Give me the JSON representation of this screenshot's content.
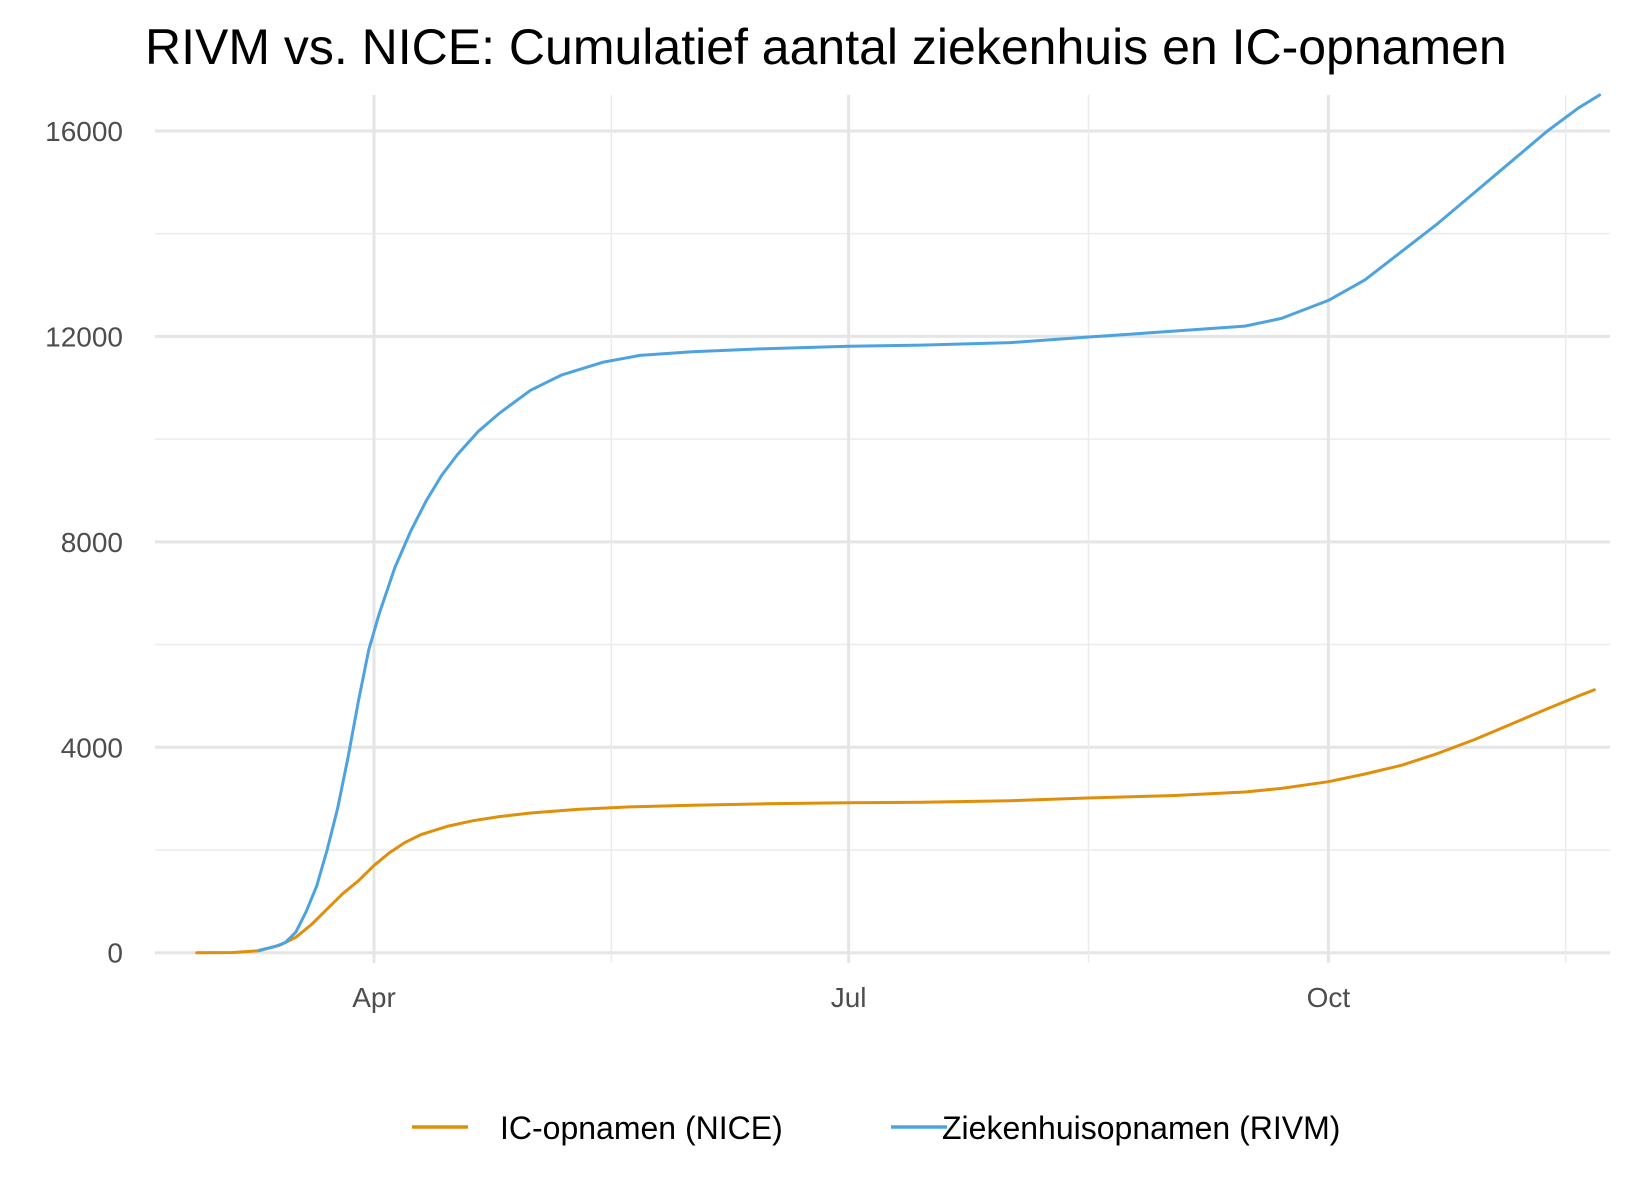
{
  "chart_data": {
    "type": "line",
    "title": "RIVM vs. NICE: Cumulatief aantal ziekenhuis en IC-opnamen",
    "xlabel": "",
    "ylabel": "",
    "x_type": "date",
    "xlim": [
      "2020-02-19",
      "2020-11-24"
    ],
    "ylim": [
      -200,
      16700
    ],
    "x_ticks": [
      {
        "value": "2020-04-01",
        "label": "Apr"
      },
      {
        "value": "2020-07-01",
        "label": "Jul"
      },
      {
        "value": "2020-10-01",
        "label": "Oct"
      }
    ],
    "y_ticks": [
      0,
      4000,
      8000,
      12000,
      16000
    ],
    "grid": true,
    "legend_position": "bottom",
    "series": [
      {
        "name": "IC-opnamen (NICE)",
        "color": "#E08F0B",
        "points": [
          [
            "2020-02-27",
            0
          ],
          [
            "2020-03-05",
            5
          ],
          [
            "2020-03-10",
            40
          ],
          [
            "2020-03-14",
            150
          ],
          [
            "2020-03-17",
            300
          ],
          [
            "2020-03-20",
            550
          ],
          [
            "2020-03-23",
            850
          ],
          [
            "2020-03-26",
            1150
          ],
          [
            "2020-03-29",
            1400
          ],
          [
            "2020-04-01",
            1700
          ],
          [
            "2020-04-04",
            1950
          ],
          [
            "2020-04-07",
            2150
          ],
          [
            "2020-04-10",
            2300
          ],
          [
            "2020-04-15",
            2460
          ],
          [
            "2020-04-20",
            2570
          ],
          [
            "2020-04-25",
            2650
          ],
          [
            "2020-05-01",
            2720
          ],
          [
            "2020-05-10",
            2790
          ],
          [
            "2020-05-20",
            2840
          ],
          [
            "2020-06-01",
            2870
          ],
          [
            "2020-06-15",
            2900
          ],
          [
            "2020-07-01",
            2920
          ],
          [
            "2020-07-15",
            2930
          ],
          [
            "2020-08-01",
            2960
          ],
          [
            "2020-08-15",
            3010
          ],
          [
            "2020-09-01",
            3060
          ],
          [
            "2020-09-15",
            3130
          ],
          [
            "2020-09-22",
            3200
          ],
          [
            "2020-10-01",
            3330
          ],
          [
            "2020-10-08",
            3480
          ],
          [
            "2020-10-15",
            3650
          ],
          [
            "2020-10-22",
            3880
          ],
          [
            "2020-10-29",
            4150
          ],
          [
            "2020-11-05",
            4450
          ],
          [
            "2020-11-12",
            4750
          ],
          [
            "2020-11-18",
            5000
          ],
          [
            "2020-11-21",
            5120
          ]
        ]
      },
      {
        "name": "Ziekenhuisopnamen (RIVM)",
        "color": "#4DA3E0",
        "points": [
          [
            "2020-03-10",
            50
          ],
          [
            "2020-03-13",
            120
          ],
          [
            "2020-03-15",
            200
          ],
          [
            "2020-03-17",
            400
          ],
          [
            "2020-03-19",
            800
          ],
          [
            "2020-03-21",
            1300
          ],
          [
            "2020-03-23",
            2000
          ],
          [
            "2020-03-25",
            2800
          ],
          [
            "2020-03-27",
            3800
          ],
          [
            "2020-03-29",
            4900
          ],
          [
            "2020-03-31",
            5900
          ],
          [
            "2020-04-02",
            6600
          ],
          [
            "2020-04-05",
            7500
          ],
          [
            "2020-04-08",
            8200
          ],
          [
            "2020-04-11",
            8800
          ],
          [
            "2020-04-14",
            9300
          ],
          [
            "2020-04-17",
            9700
          ],
          [
            "2020-04-21",
            10150
          ],
          [
            "2020-04-25",
            10500
          ],
          [
            "2020-05-01",
            10950
          ],
          [
            "2020-05-07",
            11250
          ],
          [
            "2020-05-15",
            11500
          ],
          [
            "2020-05-22",
            11630
          ],
          [
            "2020-06-01",
            11700
          ],
          [
            "2020-06-15",
            11760
          ],
          [
            "2020-07-01",
            11810
          ],
          [
            "2020-07-15",
            11830
          ],
          [
            "2020-08-01",
            11880
          ],
          [
            "2020-08-15",
            11980
          ],
          [
            "2020-09-01",
            12100
          ],
          [
            "2020-09-15",
            12200
          ],
          [
            "2020-09-22",
            12350
          ],
          [
            "2020-10-01",
            12700
          ],
          [
            "2020-10-08",
            13100
          ],
          [
            "2020-10-15",
            13650
          ],
          [
            "2020-10-22",
            14200
          ],
          [
            "2020-10-29",
            14800
          ],
          [
            "2020-11-05",
            15400
          ],
          [
            "2020-11-12",
            16000
          ],
          [
            "2020-11-18",
            16450
          ],
          [
            "2020-11-22",
            16700
          ]
        ]
      }
    ]
  }
}
